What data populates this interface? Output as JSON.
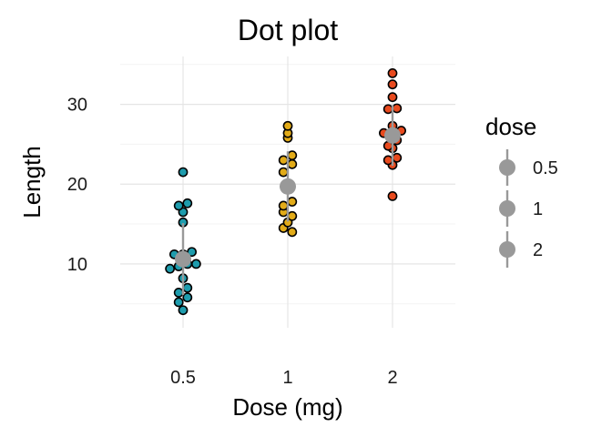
{
  "chart_data": {
    "type": "scatter",
    "title": "Dot plot",
    "xlabel": "Dose (mg)",
    "ylabel": "Length",
    "categories": [
      "0.5",
      "1",
      "2"
    ],
    "y_ticks": [
      10,
      20,
      30
    ],
    "ylim": [
      2,
      36
    ],
    "grid": true,
    "legend": {
      "title": "dose",
      "position": "right",
      "items": [
        "0.5",
        "1",
        "2"
      ]
    },
    "colors": {
      "0.5": "#1e9cad",
      "1": "#e2ab18",
      "2": "#e84a1e",
      "summary": "#999999",
      "grid_major": "#e5e5e5",
      "grid_minor": "#f3f3f3"
    },
    "series": [
      {
        "name": "0.5",
        "values": [
          4.2,
          5.2,
          5.8,
          6.4,
          7.0,
          8.2,
          9.4,
          9.7,
          10.0,
          10.0,
          11.2,
          11.2,
          11.5,
          15.2,
          16.5,
          17.3,
          17.6,
          21.5
        ]
      },
      {
        "name": "1",
        "values": [
          14.5,
          15.2,
          16.5,
          17.3,
          17.8,
          19.7,
          21.5,
          22.5,
          23.0,
          23.6,
          25.8,
          26.4,
          27.3,
          14.0,
          16.0
        ]
      },
      {
        "name": "2",
        "values": [
          18.5,
          22.4,
          23.0,
          23.3,
          24.5,
          24.8,
          25.5,
          26.4,
          26.4,
          26.7,
          27.3,
          29.4,
          29.5,
          30.9,
          32.5,
          33.9
        ]
      }
    ],
    "summary": [
      {
        "dose": "0.5",
        "mean": 10.6,
        "sd": 4.5
      },
      {
        "dose": "1",
        "mean": 19.7,
        "sd": 4.4
      },
      {
        "dose": "2",
        "mean": 26.1,
        "sd": 3.8
      }
    ]
  }
}
